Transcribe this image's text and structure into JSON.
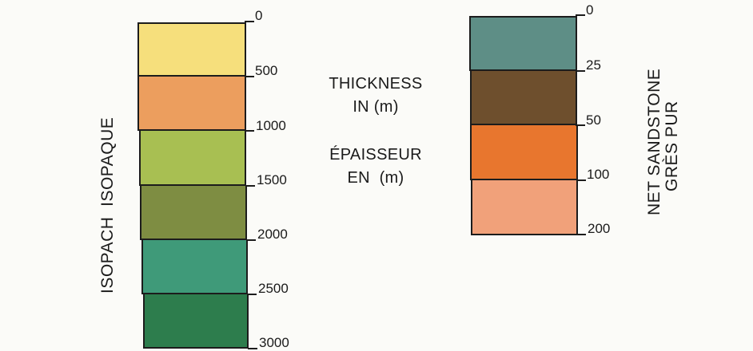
{
  "isopach": {
    "title": "ISOPACH  ISOPAQUE",
    "ticks": [
      "0",
      "500",
      "1000",
      "1500",
      "2000",
      "2500",
      "3000"
    ],
    "colors": [
      "#f6df7c",
      "#ec9e5e",
      "#a8bf52",
      "#7e8d42",
      "#3f9a79",
      "#2d7d4d"
    ]
  },
  "center": {
    "line1": "THICKNESS",
    "line2": "IN (m)",
    "line3": "ÉPAISSEUR",
    "line4": "EN  (m)"
  },
  "net_sandstone": {
    "title_line1": "NET SANDSTONE",
    "title_line2": "GRÈS PUR",
    "ticks": [
      "0",
      "25",
      "50",
      "100",
      "200"
    ],
    "colors": [
      "#5e8e86",
      "#6e4f2d",
      "#e8762e",
      "#f1a17a"
    ]
  }
}
